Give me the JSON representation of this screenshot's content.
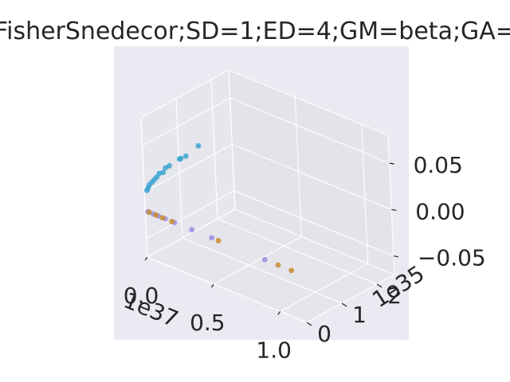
{
  "chart_data": {
    "type": "scatter",
    "projection": "3d",
    "title": "FisherSnedecor;SD=1;ED=4;GM=beta;GA=",
    "grid": true,
    "background": "#eaeaf2",
    "x_axis": {
      "ticks": [
        "0.0",
        "0.5",
        "1.0"
      ],
      "offset_text": "1e37"
    },
    "y_axis": {
      "ticks": [
        "0",
        "1",
        "2"
      ],
      "offset_text": "1e35"
    },
    "z_axis": {
      "ticks": [
        "−0.05",
        "0.00",
        "0.05"
      ]
    },
    "series": [
      {
        "color": "#3ba3d0",
        "points": [
          {
            "x": 0.02,
            "y": 0.0,
            "z": 0.003
          },
          {
            "x": 0.03,
            "y": 0.0,
            "z": 0.006
          },
          {
            "x": 0.04,
            "y": 0.0,
            "z": 0.01
          },
          {
            "x": 0.06,
            "y": 0.0,
            "z": 0.014
          },
          {
            "x": 0.08,
            "y": 0.0,
            "z": 0.018
          },
          {
            "x": 0.1,
            "y": 0.0,
            "z": 0.022
          },
          {
            "x": 0.12,
            "y": 0.0,
            "z": 0.027
          },
          {
            "x": 0.15,
            "y": 0.0,
            "z": 0.03
          },
          {
            "x": 0.17,
            "y": 0.0,
            "z": 0.036
          },
          {
            "x": 0.2,
            "y": 0.0,
            "z": 0.04
          },
          {
            "x": 0.28,
            "y": 0.0,
            "z": 0.052
          },
          {
            "x": 0.29,
            "y": 0.0,
            "z": 0.053
          },
          {
            "x": 0.33,
            "y": 0.0,
            "z": 0.058
          },
          {
            "x": 0.43,
            "y": 0.0,
            "z": 0.075
          }
        ]
      },
      {
        "color": "#9b8ee6",
        "points": [
          {
            "x": 0.02,
            "y": 0.0,
            "z": -0.02
          },
          {
            "x": 0.06,
            "y": 0.0,
            "z": -0.02
          },
          {
            "x": 0.1,
            "y": 0.0,
            "z": -0.02
          },
          {
            "x": 0.15,
            "y": 0.0,
            "z": -0.02
          },
          {
            "x": 0.22,
            "y": 0.0,
            "z": -0.02
          },
          {
            "x": 0.35,
            "y": 0.0,
            "z": -0.02
          },
          {
            "x": 0.5,
            "y": 0.0,
            "z": -0.02
          },
          {
            "x": 0.9,
            "y": 0.0,
            "z": -0.02
          }
        ]
      },
      {
        "color": "#c98b2e",
        "points": [
          {
            "x": 0.03,
            "y": 0.0,
            "z": -0.02
          },
          {
            "x": 0.08,
            "y": 0.0,
            "z": -0.02
          },
          {
            "x": 0.13,
            "y": 0.0,
            "z": -0.02
          },
          {
            "x": 0.2,
            "y": 0.0,
            "z": -0.02
          },
          {
            "x": 0.55,
            "y": 0.0,
            "z": -0.02
          },
          {
            "x": 1.0,
            "y": 0.0,
            "z": -0.02
          },
          {
            "x": 1.1,
            "y": 0.0,
            "z": -0.02
          }
        ]
      }
    ]
  }
}
